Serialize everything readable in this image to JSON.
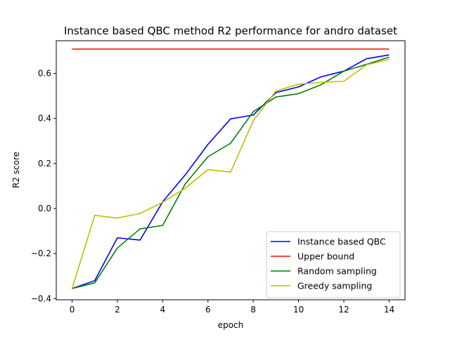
{
  "chart_data": {
    "type": "line",
    "title": "Instance based QBC method R2 performance for andro dataset",
    "xlabel": "epoch",
    "ylabel": "R2 score",
    "xlim": [
      -0.7,
      14.7
    ],
    "ylim": [
      -0.405,
      0.745
    ],
    "xticks": [
      0,
      2,
      4,
      6,
      8,
      10,
      12,
      14
    ],
    "xtick_labels": [
      "0",
      "2",
      "4",
      "6",
      "8",
      "10",
      "12",
      "14"
    ],
    "yticks": [
      -0.4,
      -0.2,
      0.0,
      0.2,
      0.4,
      0.6
    ],
    "ytick_labels": [
      "−0.4",
      "−0.2",
      "0.0",
      "0.2",
      "0.4",
      "0.6"
    ],
    "grid": false,
    "legend_position": "lower-right",
    "x": [
      0,
      1,
      2,
      3,
      4,
      5,
      6,
      7,
      8,
      9,
      10,
      11,
      12,
      13,
      14
    ],
    "series": [
      {
        "name": "Instance based QBC",
        "color": "#0000ff",
        "values": [
          -0.355,
          -0.32,
          -0.13,
          -0.14,
          0.03,
          0.15,
          0.285,
          0.398,
          0.415,
          0.515,
          0.54,
          0.585,
          0.61,
          0.665,
          0.682
        ]
      },
      {
        "name": "Upper bound",
        "color": "#ff0000",
        "values": [
          0.708,
          0.708,
          0.708,
          0.708,
          0.708,
          0.708,
          0.708,
          0.708,
          0.708,
          0.708,
          0.708,
          0.708,
          0.708,
          0.708,
          0.708
        ]
      },
      {
        "name": "Random sampling",
        "color": "#008000",
        "values": [
          -0.355,
          -0.33,
          -0.175,
          -0.09,
          -0.075,
          0.11,
          0.23,
          0.29,
          0.43,
          0.495,
          0.51,
          0.55,
          0.61,
          0.64,
          0.672
        ]
      },
      {
        "name": "Greedy sampling",
        "color": "#bfbf00",
        "values": [
          -0.355,
          -0.03,
          -0.042,
          -0.022,
          0.028,
          0.09,
          0.173,
          0.162,
          0.39,
          0.522,
          0.552,
          0.56,
          0.565,
          0.638,
          0.662
        ]
      }
    ]
  }
}
